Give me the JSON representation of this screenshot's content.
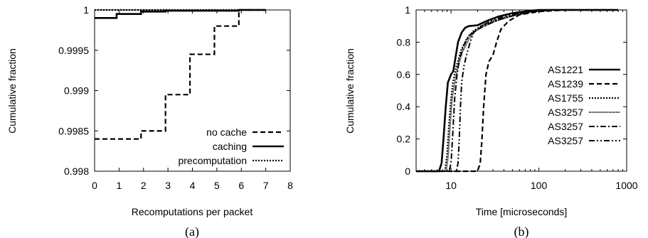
{
  "chart_data": [
    {
      "type": "line",
      "caption": "(a)",
      "xlabel": "Recomputations per packet",
      "ylabel": "Cumulative fraction",
      "xlim": [
        0,
        8
      ],
      "ylim": [
        0.998,
        1
      ],
      "xticks": [
        "0",
        "1",
        "2",
        "3",
        "4",
        "5",
        "6",
        "7",
        "8"
      ],
      "yticks": [
        "1",
        "0.9995",
        "0.999",
        "0.9985",
        "0.998"
      ],
      "legend_position": "bottom-right",
      "series": [
        {
          "name": "no cache",
          "dash": "7,4",
          "width": 2.2,
          "points": [
            [
              0,
              0.9984
            ],
            [
              1.9,
              0.9984
            ],
            [
              1.9,
              0.9985
            ],
            [
              2.9,
              0.9985
            ],
            [
              2.9,
              0.99895
            ],
            [
              3.9,
              0.99895
            ],
            [
              3.9,
              0.99945
            ],
            [
              4.9,
              0.99945
            ],
            [
              4.9,
              0.9998
            ],
            [
              5.9,
              0.9998
            ],
            [
              5.9,
              1.0
            ],
            [
              7,
              1.0
            ]
          ]
        },
        {
          "name": "caching",
          "dash": "",
          "width": 2.6,
          "points": [
            [
              0,
              0.9999
            ],
            [
              0.9,
              0.9999
            ],
            [
              0.9,
              0.99995
            ],
            [
              1.9,
              0.99995
            ],
            [
              1.9,
              0.99998
            ],
            [
              2.9,
              0.99998
            ],
            [
              2.9,
              0.99999
            ],
            [
              5.9,
              0.99999
            ],
            [
              5.9,
              1.0
            ],
            [
              7,
              1.0
            ]
          ]
        },
        {
          "name": "precomputation",
          "dash": "2,2",
          "width": 2.2,
          "points": [
            [
              0,
              1.0
            ],
            [
              7,
              1.0
            ]
          ]
        }
      ]
    },
    {
      "type": "line",
      "caption": "(b)",
      "xlabel": "Time [microseconds]",
      "ylabel": "Cumulative fraction",
      "xscale": "log",
      "xlim": [
        4,
        1000
      ],
      "ylim": [
        0,
        1
      ],
      "xticks": [
        "10",
        "100",
        "1000"
      ],
      "yticks": [
        "1",
        "0.8",
        "0.6",
        "0.4",
        "0.2",
        "0"
      ],
      "legend_position": "bottom-right",
      "series": [
        {
          "name": "AS1221",
          "dash": "",
          "width": 2.6,
          "points": [
            [
              4,
              0
            ],
            [
              7.3,
              0
            ],
            [
              7.8,
              0.05
            ],
            [
              8.2,
              0.2
            ],
            [
              8.7,
              0.4
            ],
            [
              9.2,
              0.55
            ],
            [
              10,
              0.6
            ],
            [
              10.6,
              0.62
            ],
            [
              11.2,
              0.7
            ],
            [
              12,
              0.8
            ],
            [
              13.2,
              0.86
            ],
            [
              14.5,
              0.89
            ],
            [
              16,
              0.9
            ],
            [
              20,
              0.905
            ],
            [
              25,
              0.93
            ],
            [
              35,
              0.96
            ],
            [
              50,
              0.98
            ],
            [
              80,
              0.995
            ],
            [
              100,
              1.0
            ],
            [
              800,
              1.0
            ]
          ]
        },
        {
          "name": "AS1239",
          "dash": "7,4",
          "width": 2.2,
          "points": [
            [
              4,
              0
            ],
            [
              20,
              0
            ],
            [
              21.5,
              0.05
            ],
            [
              22.5,
              0.2
            ],
            [
              23.5,
              0.4
            ],
            [
              25,
              0.6
            ],
            [
              27,
              0.68
            ],
            [
              30,
              0.72
            ],
            [
              33,
              0.8
            ],
            [
              37,
              0.88
            ],
            [
              45,
              0.93
            ],
            [
              60,
              0.97
            ],
            [
              100,
              0.99
            ],
            [
              200,
              1.0
            ],
            [
              800,
              1.0
            ]
          ]
        },
        {
          "name": "AS1755",
          "dash": "2,2",
          "width": 2.2,
          "points": [
            [
              4,
              0
            ],
            [
              8.5,
              0
            ],
            [
              9,
              0.1
            ],
            [
              9.5,
              0.3
            ],
            [
              10,
              0.45
            ],
            [
              10.5,
              0.55
            ],
            [
              11.5,
              0.65
            ],
            [
              13,
              0.75
            ],
            [
              15,
              0.82
            ],
            [
              18,
              0.87
            ],
            [
              22,
              0.9
            ],
            [
              30,
              0.93
            ],
            [
              45,
              0.96
            ],
            [
              70,
              0.985
            ],
            [
              120,
              1.0
            ],
            [
              800,
              1.0
            ]
          ]
        },
        {
          "name": "AS3257",
          "dash": "1,1",
          "width": 2.0,
          "points": [
            [
              4,
              0
            ],
            [
              8.8,
              0
            ],
            [
              9.3,
              0.1
            ],
            [
              9.8,
              0.3
            ],
            [
              10.3,
              0.45
            ],
            [
              11,
              0.55
            ],
            [
              12,
              0.65
            ],
            [
              13.5,
              0.74
            ],
            [
              16,
              0.82
            ],
            [
              19,
              0.87
            ],
            [
              24,
              0.9
            ],
            [
              32,
              0.93
            ],
            [
              48,
              0.96
            ],
            [
              75,
              0.985
            ],
            [
              130,
              1.0
            ],
            [
              800,
              1.0
            ]
          ]
        },
        {
          "name": "AS3257",
          "dash": "8,3,2,3",
          "width": 2.0,
          "points": [
            [
              4,
              0
            ],
            [
              9.5,
              0
            ],
            [
              10,
              0.05
            ],
            [
              10.5,
              0.25
            ],
            [
              11,
              0.45
            ],
            [
              11.7,
              0.6
            ],
            [
              12.5,
              0.7
            ],
            [
              14,
              0.78
            ],
            [
              16,
              0.84
            ],
            [
              20,
              0.88
            ],
            [
              26,
              0.91
            ],
            [
              35,
              0.94
            ],
            [
              55,
              0.97
            ],
            [
              90,
              0.99
            ],
            [
              150,
              1.0
            ],
            [
              800,
              1.0
            ]
          ]
        },
        {
          "name": "AS3257",
          "dash": "8,3,2,3,2,3",
          "width": 2.0,
          "points": [
            [
              4,
              0
            ],
            [
              11.5,
              0
            ],
            [
              12,
              0.05
            ],
            [
              12.4,
              0.2
            ],
            [
              12.8,
              0.4
            ],
            [
              13.2,
              0.55
            ],
            [
              14,
              0.65
            ],
            [
              15,
              0.72
            ],
            [
              16.5,
              0.8
            ],
            [
              18,
              0.86
            ],
            [
              22,
              0.9
            ],
            [
              28,
              0.93
            ],
            [
              40,
              0.96
            ],
            [
              65,
              0.985
            ],
            [
              110,
              1.0
            ],
            [
              800,
              1.0
            ]
          ]
        }
      ]
    }
  ]
}
